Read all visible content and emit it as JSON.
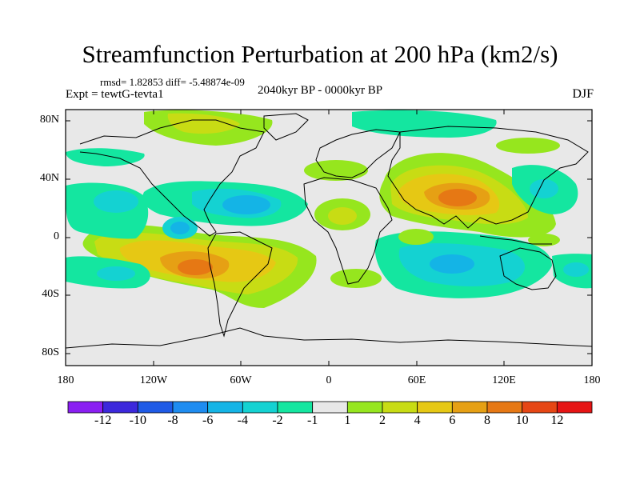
{
  "title": "Streamfunction Perturbation at 200 hPa (km2/s)",
  "stats": "rmsd= 1.82853 diff= -5.48874e-09",
  "experiment": "Expt = tewtG-tevta1",
  "period": "2040kyr BP - 0000kyr BP",
  "season": "DJF",
  "lat_labels": [
    "80N",
    "40N",
    "0",
    "40S",
    "80S"
  ],
  "lon_labels": [
    "180",
    "120W",
    "60W",
    "0",
    "60E",
    "120E",
    "180"
  ],
  "colorbar": {
    "labels": [
      "-12",
      "-10",
      "-8",
      "-6",
      "-4",
      "-2",
      "-1",
      "1",
      "2",
      "4",
      "6",
      "8",
      "10",
      "12"
    ],
    "colors": [
      "#8a1ef2",
      "#3c28dc",
      "#1e5ae6",
      "#1e8cf0",
      "#14b4e6",
      "#14d2d2",
      "#14e6a0",
      "#e8e8e8",
      "#96e61e",
      "#c8dc14",
      "#e6c814",
      "#e6a014",
      "#e67814",
      "#e64614",
      "#e61414"
    ]
  },
  "colors": {
    "background": "#e8e8e8",
    "pos1": "#96e61e",
    "pos2": "#c8dc14",
    "pos3": "#e6c814",
    "pos4": "#e6a014",
    "pos5": "#e67814",
    "neg1": "#14e6a0",
    "neg2": "#14d2d2",
    "neg3": "#14b4e6",
    "neg4": "#1e8cf0"
  }
}
